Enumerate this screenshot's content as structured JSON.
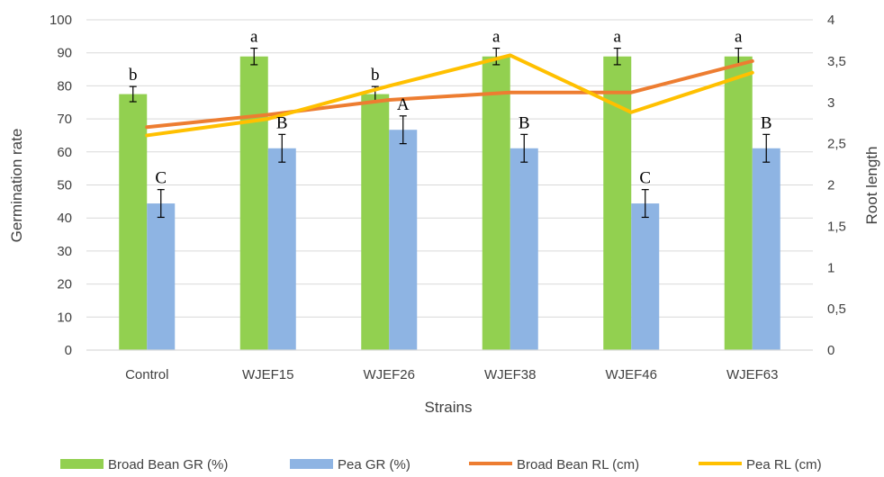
{
  "chart_data": {
    "type": "bar",
    "categories": [
      "Control",
      "WJEF15",
      "WJEF26",
      "WJEF38",
      "WJEF46",
      "WJEF63"
    ],
    "xlabel": "Strains",
    "ylabel": "Germination rate",
    "y2label": "Root length",
    "ylim": [
      0,
      100
    ],
    "y2lim": [
      0,
      4
    ],
    "yticks": [
      "0",
      "10",
      "20",
      "30",
      "40",
      "50",
      "60",
      "70",
      "80",
      "90",
      "100"
    ],
    "y2ticks": [
      "0",
      "0,5",
      "1",
      "1,5",
      "2",
      "2,5",
      "3",
      "3,5",
      "4"
    ],
    "grid": true,
    "legend_position": "bottom",
    "series": [
      {
        "name": "Broad Bean GR (%)",
        "kind": "bar",
        "axis": "left",
        "color": "#92d050",
        "values": [
          77.5,
          88.9,
          77.5,
          88.9,
          88.9,
          88.9
        ],
        "error": [
          2.3,
          2.5,
          2.3,
          2.5,
          2.5,
          2.5
        ],
        "labels": [
          "b",
          "a",
          "b",
          "a",
          "a",
          "a"
        ]
      },
      {
        "name": "Pea GR (%)",
        "kind": "bar",
        "axis": "left",
        "color": "#8eb4e3",
        "values": [
          44.4,
          61.1,
          66.7,
          61.1,
          44.4,
          61.1
        ],
        "error": [
          4.2,
          4.2,
          4.2,
          4.2,
          4.2,
          4.2
        ],
        "labels": [
          "C",
          "B",
          "A",
          "B",
          "C",
          "B"
        ]
      },
      {
        "name": "Broad Bean RL (cm)",
        "kind": "line",
        "axis": "right",
        "color": "#ed7d31",
        "values": [
          2.7,
          2.85,
          3.03,
          3.12,
          3.12,
          3.5
        ]
      },
      {
        "name": "Pea RL (cm)",
        "kind": "line",
        "axis": "right",
        "color": "#ffc000",
        "values": [
          2.6,
          2.8,
          3.2,
          3.57,
          2.88,
          3.36
        ]
      }
    ]
  }
}
